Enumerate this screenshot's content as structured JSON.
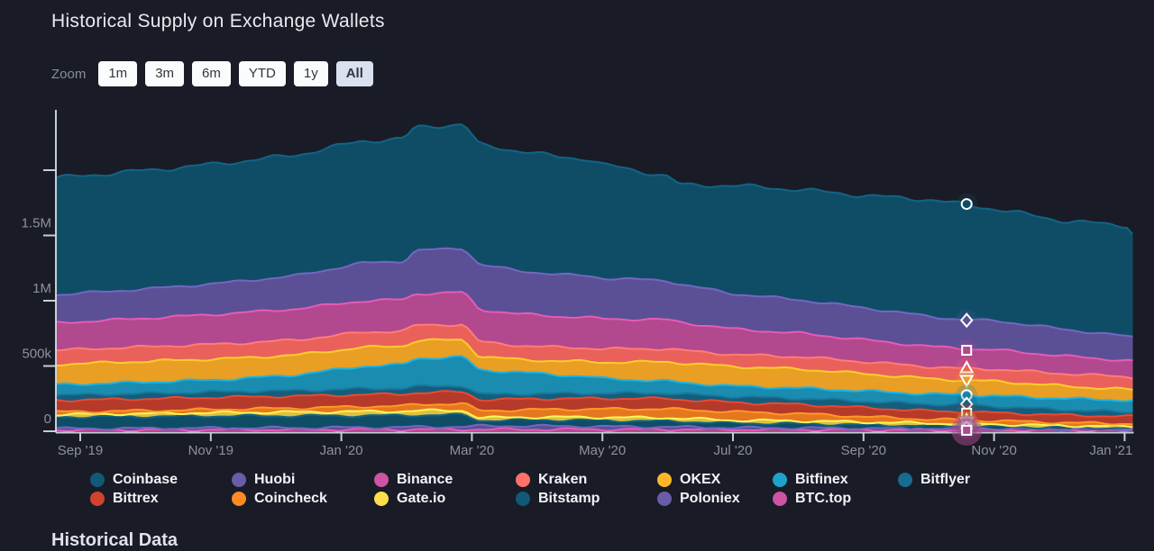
{
  "header": {
    "title": "Historical Supply on Exchange Wallets"
  },
  "zoom_toolbar": {
    "label": "Zoom",
    "buttons": [
      {
        "label": "1m",
        "selected": false
      },
      {
        "label": "3m",
        "selected": false
      },
      {
        "label": "6m",
        "selected": false
      },
      {
        "label": "YTD",
        "selected": false
      },
      {
        "label": "1y",
        "selected": false
      },
      {
        "label": "All",
        "selected": true
      }
    ]
  },
  "chart_data": {
    "type": "area",
    "stacking": "normal",
    "title": "Historical Supply on Exchange Wallets",
    "xlabel": "",
    "ylabel": "",
    "values_unit": "thousands of BTC",
    "x_unit": "months since Sep 2019",
    "grid": false,
    "legend_position": "bottom",
    "y_ticks": [
      {
        "k": 0,
        "label": "0"
      },
      {
        "k": 500,
        "label": "500k"
      },
      {
        "k": 1000,
        "label": "1M"
      },
      {
        "k": 1500,
        "label": "1.5M"
      },
      {
        "k": 2000,
        "label": ""
      }
    ],
    "x_ticks": [
      {
        "m": 0,
        "label": "Sep '19"
      },
      {
        "m": 2,
        "label": "Nov '19"
      },
      {
        "m": 4,
        "label": "Jan '20"
      },
      {
        "m": 6,
        "label": "Mar '20"
      },
      {
        "m": 8,
        "label": "May '20"
      },
      {
        "m": 10,
        "label": "Jul '20"
      },
      {
        "m": 12,
        "label": "Sep '20"
      },
      {
        "m": 14,
        "label": "Nov '20"
      },
      {
        "m": 16,
        "label": "Jan '21"
      }
    ],
    "x_points": [
      -0.38,
      0.43,
      1.4,
      2.36,
      3.33,
      4.3,
      4.97,
      5.13,
      5.88,
      6.11,
      6.71,
      7.33,
      7.78,
      8.0,
      8.99,
      9.2,
      10.0,
      11.06,
      12.02,
      13.0,
      13.58,
      14.01,
      15.07,
      16.04,
      16.12
    ],
    "marker_x": 13.58,
    "series": [
      {
        "name": "Coinbase",
        "color": "#0f4d67",
        "marker": "circle",
        "values": [
          895,
          903,
          910,
          918,
          925,
          935,
          937,
          945,
          950,
          915,
          920,
          900,
          898,
          870,
          800,
          760,
          830,
          845,
          860,
          895,
          883,
          855,
          830,
          848,
          800
        ]
      },
      {
        "name": "Huobi",
        "color": "#5b5095",
        "marker": "diamond",
        "values": [
          215,
          221,
          228,
          240,
          255,
          290,
          295,
          331,
          338,
          345,
          330,
          322,
          318,
          312,
          300,
          290,
          270,
          255,
          245,
          230,
          221,
          224,
          205,
          186,
          184
        ]
      },
      {
        "name": "Binance",
        "color": "#b2488e",
        "marker": "square",
        "values": [
          210,
          214,
          222,
          232,
          238,
          240,
          240,
          241,
          246,
          248,
          242,
          236,
          234,
          230,
          222,
          215,
          195,
          180,
          168,
          156,
          151,
          149,
          135,
          124,
          123
        ]
      },
      {
        "name": "Kraken",
        "color": "#ea615c",
        "marker": "triangle",
        "values": [
          108,
          110,
          112,
          114,
          115,
          116,
          116,
          117,
          118,
          112,
          108,
          105,
          104,
          103,
          100,
          97,
          92,
          94,
          92,
          91,
          90,
          92,
          95,
          97,
          96
        ]
      },
      {
        "name": "OKEX",
        "color": "#e89f24",
        "marker": "triangle-down",
        "values": [
          155,
          159,
          160,
          158,
          152,
          145,
          142,
          138,
          130,
          105,
          95,
          108,
          112,
          125,
          148,
          150,
          150,
          145,
          132,
          118,
          110,
          112,
          95,
          83,
          82
        ]
      },
      {
        "name": "Bitfinex",
        "color": "#1a8cb0",
        "marker": "circle",
        "values": [
          80,
          83,
          88,
          95,
          120,
          170,
          180,
          214,
          220,
          185,
          168,
          140,
          130,
          112,
          92,
          88,
          80,
          79,
          78,
          77,
          76,
          80,
          85,
          90,
          89
        ]
      },
      {
        "name": "Bitflyer",
        "color": "#145e7c",
        "marker": "diamond",
        "values": [
          40,
          41,
          42,
          43,
          44,
          46,
          47,
          48,
          49,
          42,
          40,
          40,
          40,
          40,
          42,
          42,
          45,
          47,
          50,
          53,
          55,
          50,
          42,
          34,
          34
        ]
      },
      {
        "name": "Bittrex",
        "color": "#b53a29",
        "marker": "square",
        "values": [
          88,
          90,
          91,
          92,
          92,
          91,
          91,
          90,
          89,
          84,
          83,
          82,
          82,
          81,
          79,
          77,
          72,
          70,
          68,
          64,
          62,
          61,
          58,
          55,
          55
        ]
      },
      {
        "name": "Coincheck",
        "color": "#e5771f",
        "marker": "triangle",
        "values": [
          20,
          21,
          23,
          26,
          30,
          38,
          40,
          48,
          52,
          55,
          56,
          60,
          61,
          64,
          68,
          67,
          65,
          55,
          42,
          30,
          28,
          27,
          23,
          21,
          21
        ]
      },
      {
        "name": "Gate.io",
        "color": "#ddc043",
        "marker": "triangle-down",
        "values": [
          20,
          21,
          24,
          27,
          30,
          32,
          33,
          34,
          35,
          22,
          21,
          23,
          24,
          25,
          26,
          25,
          22,
          22,
          21,
          20,
          20,
          18,
          15,
          14,
          14
        ]
      },
      {
        "name": "Bitstamp",
        "color": "#0f4d67",
        "marker": "circle",
        "values": [
          88,
          90,
          91,
          92,
          91,
          90,
          90,
          90,
          90,
          40,
          45,
          46,
          46,
          45,
          44,
          42,
          35,
          32,
          27,
          21,
          18,
          16,
          12,
          10,
          10
        ]
      },
      {
        "name": "Poloniex",
        "color": "#5b5095",
        "marker": "diamond",
        "values": [
          11,
          11,
          12,
          13,
          14,
          16,
          17,
          19,
          21,
          26,
          27,
          25,
          24,
          22,
          19,
          18,
          14,
          13,
          11,
          10,
          10,
          9,
          7,
          5,
          5
        ]
      },
      {
        "name": "BTC.top",
        "color": "#b2488e",
        "marker": "square",
        "values": [
          10,
          10,
          11,
          12,
          12,
          13,
          13,
          14,
          14,
          14,
          14,
          14,
          14,
          14,
          14,
          14,
          13,
          12,
          11,
          10,
          10,
          10,
          9,
          8,
          8
        ]
      }
    ],
    "legend_rows": [
      [
        "Coinbase",
        "Huobi",
        "Binance",
        "Kraken",
        "OKEX",
        "Bitfinex",
        "Bitflyer"
      ],
      [
        "Bittrex",
        "Coincheck",
        "Gate.io",
        "Bitstamp",
        "Poloniex",
        "BTC.top"
      ]
    ]
  },
  "footer": {
    "heading": "Historical Data"
  }
}
